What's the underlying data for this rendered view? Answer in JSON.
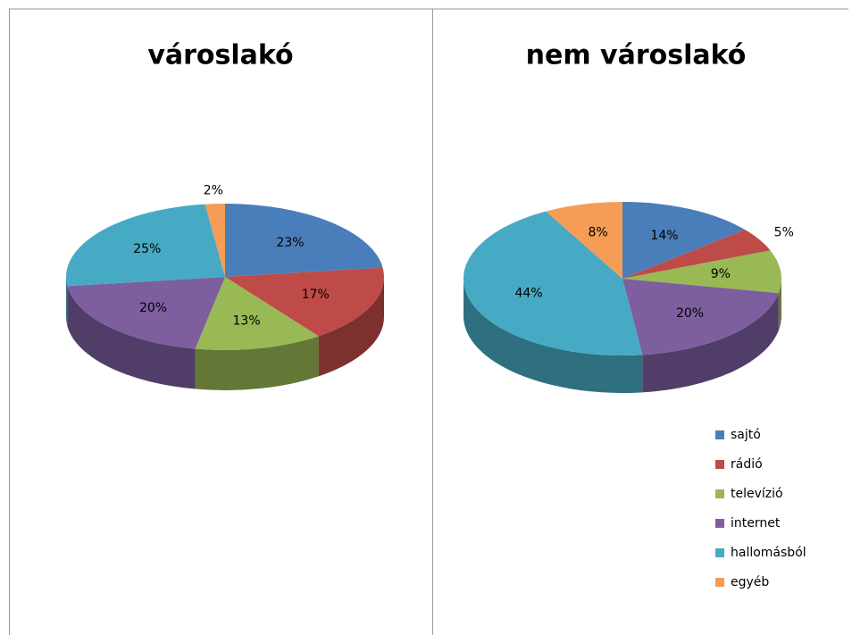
{
  "chart_data": [
    {
      "type": "pie",
      "title": "városlakó",
      "values": [
        23,
        17,
        13,
        20,
        25,
        2
      ],
      "value_labels": [
        "23%",
        "17%",
        "13%",
        "20%",
        "25%",
        "2%"
      ],
      "colors": [
        "#4a7ebb",
        "#be4b48",
        "#98b954",
        "#7d5fa0",
        "#46aac5",
        "#f59d56"
      ]
    },
    {
      "type": "pie",
      "title": "nem városlakó",
      "categories": [
        "sajtó",
        "rádió",
        "televízió",
        "internet",
        "hallomásból",
        "egyéb"
      ],
      "values": [
        14,
        5,
        9,
        20,
        44,
        8
      ],
      "value_labels": [
        "14%",
        "5%",
        "9%",
        "20%",
        "44%",
        "8%"
      ],
      "colors": [
        "#4a7ebb",
        "#be4b48",
        "#98b954",
        "#7d5fa0",
        "#46aac5",
        "#f59d56"
      ],
      "legend": "bottom-right"
    }
  ]
}
